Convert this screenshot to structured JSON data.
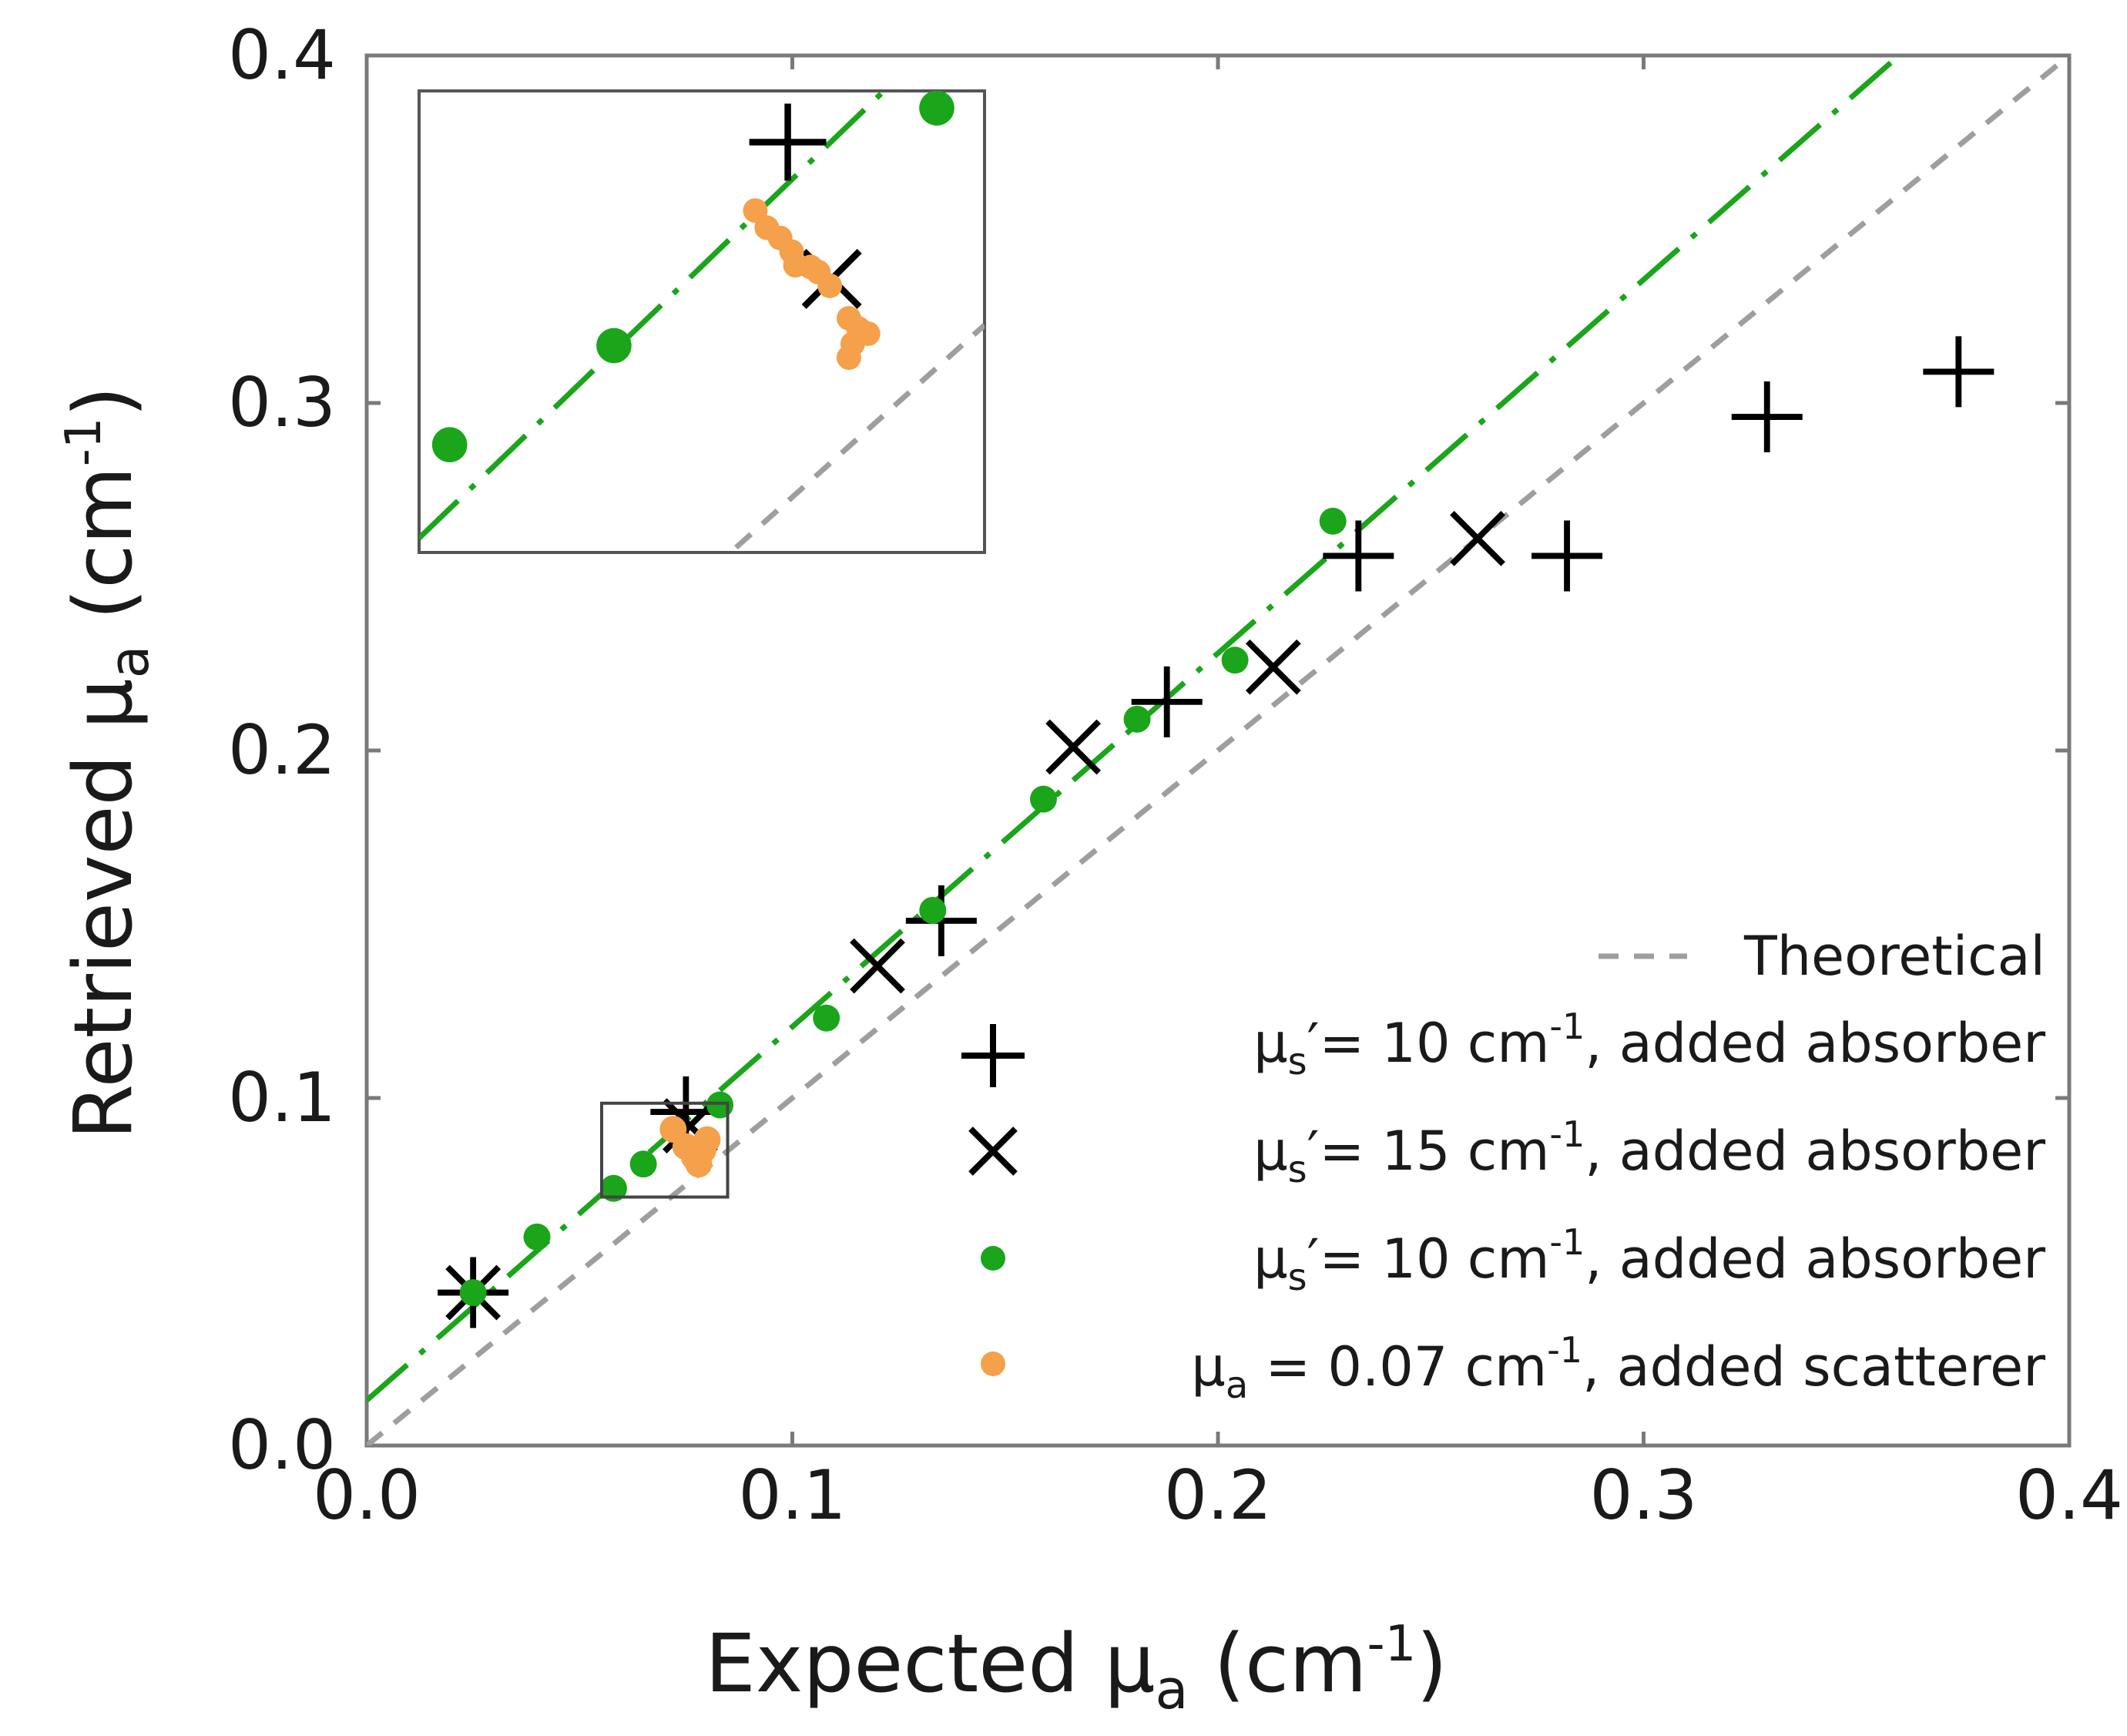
{
  "chart_data": {
    "type": "scatter",
    "title": "",
    "xlabel": {
      "prefix": "Expected ",
      "mu": "μ",
      "sub": "a",
      "unit": " (cm",
      "exp": "-1",
      "close": ")"
    },
    "ylabel": {
      "prefix": "Retrieved ",
      "mu": "μ",
      "sub": "a",
      "unit": " (cm",
      "exp": "-1",
      "close": ")"
    },
    "xlim": [
      0,
      0.4
    ],
    "ylim": [
      0,
      0.4
    ],
    "xticks": [
      "0.0",
      "0.1",
      "0.2",
      "0.3",
      "0.4"
    ],
    "yticks": [
      "0.0",
      "0.1",
      "0.2",
      "0.3",
      "0.4"
    ],
    "grid": false,
    "legend_position": "lower-right",
    "reference_lines": [
      {
        "name": "Theoretical",
        "style": "dashed",
        "color": "#9e9e9e",
        "slope": 1,
        "intercept": 0
      },
      {
        "name": "fit",
        "style": "dash-dot",
        "color": "#1aa51a",
        "slope": 1.075,
        "intercept": 0.013
      }
    ],
    "series": [
      {
        "name": "mus10_plus",
        "marker": "plus",
        "color": "#000000",
        "legend": {
          "mu": "μ",
          "sub": "s",
          "text": "′= 10 cm",
          "exp": "-1",
          "tail": ",   added absorber"
        },
        "points": [
          [
            0.025,
            0.044
          ],
          [
            0.075,
            0.096
          ],
          [
            0.135,
            0.151
          ],
          [
            0.188,
            0.214
          ],
          [
            0.233,
            0.256
          ],
          [
            0.282,
            0.256
          ],
          [
            0.329,
            0.296
          ],
          [
            0.374,
            0.309
          ]
        ]
      },
      {
        "name": "mus15_cross",
        "marker": "cross",
        "color": "#000000",
        "legend": {
          "mu": "μ",
          "sub": "s",
          "text": "′= 15 cm",
          "exp": "-1",
          "tail": ",   added absorber"
        },
        "points": [
          [
            0.025,
            0.044
          ],
          [
            0.076,
            0.092
          ],
          [
            0.12,
            0.138
          ],
          [
            0.166,
            0.201
          ],
          [
            0.213,
            0.224
          ],
          [
            0.261,
            0.261
          ]
        ]
      },
      {
        "name": "mus10_dot",
        "marker": "dot",
        "color": "#1aa51a",
        "legend": {
          "mu": "μ",
          "sub": "s",
          "text": "′= 10 cm",
          "exp": "-1",
          "tail": ",   added absorber"
        },
        "points": [
          [
            0.025,
            0.044
          ],
          [
            0.04,
            0.06
          ],
          [
            0.058,
            0.074
          ],
          [
            0.065,
            0.081
          ],
          [
            0.083,
            0.098
          ],
          [
            0.108,
            0.123
          ],
          [
            0.133,
            0.154
          ],
          [
            0.159,
            0.186
          ],
          [
            0.181,
            0.209
          ],
          [
            0.204,
            0.226
          ],
          [
            0.227,
            0.266
          ]
        ]
      },
      {
        "name": "mua007_orange",
        "marker": "dot",
        "color": "#f5a04a",
        "legend": {
          "mu": "μ",
          "sub": "a",
          "text": " = 0.07 cm",
          "exp": "-1",
          "tail": ", added scatterer"
        },
        "points": [
          [
            0.072,
            0.091
          ],
          [
            0.075,
            0.086
          ],
          [
            0.077,
            0.083
          ],
          [
            0.079,
            0.085
          ],
          [
            0.08,
            0.088
          ],
          [
            0.078,
            0.081
          ]
        ]
      }
    ],
    "inset": {
      "source_box": {
        "x": [
          0.0552,
          0.0848
        ],
        "y": [
          0.0715,
          0.0985
        ]
      },
      "series": {
        "mus10_plus": [
          [
            0.0745,
            0.0955
          ]
        ],
        "mus15_cross": [
          [
            0.0768,
            0.0875
          ]
        ],
        "mus10_dot": [
          [
            0.0568,
            0.0778
          ],
          [
            0.0654,
            0.0836
          ],
          [
            0.0823,
            0.0975
          ]
        ],
        "mua007_orange": [
          [
            0.0728,
            0.0915
          ],
          [
            0.0734,
            0.0905
          ],
          [
            0.0741,
            0.0899
          ],
          [
            0.0747,
            0.0891
          ],
          [
            0.0749,
            0.0883
          ],
          [
            0.0757,
            0.0882
          ],
          [
            0.0761,
            0.0879
          ],
          [
            0.0767,
            0.0871
          ],
          [
            0.0777,
            0.0852
          ],
          [
            0.0782,
            0.0846
          ],
          [
            0.0787,
            0.0843
          ],
          [
            0.0779,
            0.0837
          ],
          [
            0.0777,
            0.0829
          ]
        ]
      }
    }
  }
}
